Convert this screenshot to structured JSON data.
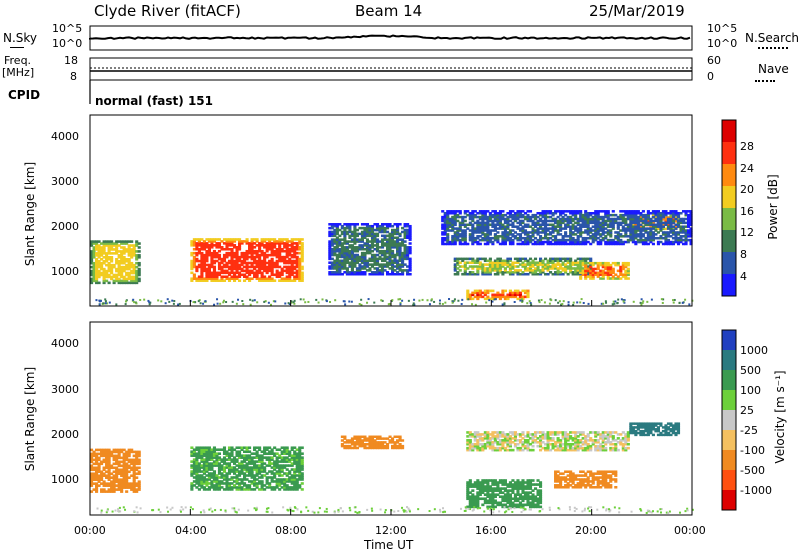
{
  "header": {
    "station": "Clyde River (fitACF)",
    "beam": "Beam 14",
    "date": "25/Mar/2019"
  },
  "noise_panel": {
    "left_label": "N.Sky",
    "right_label": "N.Search",
    "left_ticks": [
      "10^5",
      "10^0"
    ],
    "right_ticks": [
      "10^5",
      "10^0"
    ]
  },
  "freq_panel": {
    "left_label_line1": "Freq.",
    "left_label_line2": "[MHz]",
    "left_ticks": [
      "18",
      "8"
    ],
    "right_label": "Nave",
    "right_ticks": [
      "60",
      "0"
    ]
  },
  "cpid_panel": {
    "label": "CPID",
    "mode_text": "normal (fast) 151"
  },
  "power_panel": {
    "ylabel": "Slant Range [km]",
    "yticks": [
      "1000",
      "2000",
      "3000",
      "4000"
    ],
    "colorbar_label": "Power [dB]",
    "colorbar_ticks": [
      "4",
      "8",
      "12",
      "16",
      "20",
      "24",
      "28"
    ],
    "colorbar_colors": [
      "#1a1aff",
      "#2a55aa",
      "#3c7a52",
      "#7abb45",
      "#f2cc20",
      "#ff8a10",
      "#ff3010",
      "#dd0000"
    ]
  },
  "velocity_panel": {
    "ylabel": "Slant Range [km]",
    "yticks": [
      "1000",
      "2000",
      "3000",
      "4000"
    ],
    "colorbar_label": "Velocity [m s⁻¹]",
    "colorbar_ticks": [
      "1000",
      "500",
      "100",
      "25",
      "-25",
      "-100",
      "-500",
      "-1000"
    ],
    "colorbar_colors": [
      "#2040c0",
      "#2a7a80",
      "#3a9a50",
      "#6ccf3a",
      "#c8c8c8",
      "#f4c060",
      "#f08a20",
      "#ff5010",
      "#dd0000"
    ]
  },
  "xaxis": {
    "label": "Time UT",
    "ticks": [
      "00:00",
      "04:00",
      "08:00",
      "12:00",
      "16:00",
      "20:00",
      "00:00"
    ]
  },
  "chart_data": {
    "type": "heatmap",
    "title": "Clyde River (fitACF) Beam 14 25/Mar/2019",
    "xlabel": "Time UT",
    "ylabel": "Slant Range [km]",
    "xlim_hours": [
      0,
      24
    ],
    "ylim_km": [
      180,
      4600
    ],
    "power_regions": [
      {
        "t0": 0.0,
        "t1": 2.0,
        "r0": 700,
        "r1": 1700,
        "db": 18
      },
      {
        "t0": 4.0,
        "t1": 8.5,
        "r0": 750,
        "r1": 1750,
        "db": 26
      },
      {
        "t0": 9.5,
        "t1": 12.8,
        "r0": 900,
        "r1": 2100,
        "db": 9
      },
      {
        "t0": 15.0,
        "t1": 17.5,
        "r0": 330,
        "r1": 560,
        "db": 27
      },
      {
        "t0": 14.5,
        "t1": 20.0,
        "r0": 900,
        "r1": 1300,
        "db": 16
      },
      {
        "t0": 19.5,
        "t1": 21.5,
        "r0": 800,
        "r1": 1200,
        "db": 24
      },
      {
        "t0": 21.5,
        "t1": 23.5,
        "r0": 1950,
        "r1": 2300,
        "db": 24
      },
      {
        "t0": 14.0,
        "t1": 24.0,
        "r0": 1600,
        "r1": 2400,
        "db": 7
      }
    ],
    "velocity_regions": [
      {
        "t0": 0.0,
        "t1": 2.0,
        "r0": 700,
        "r1": 1700,
        "v": -300
      },
      {
        "t0": 4.0,
        "t1": 8.5,
        "r0": 750,
        "r1": 1750,
        "v": 150
      },
      {
        "t0": 10.0,
        "t1": 12.5,
        "r0": 1700,
        "r1": 2000,
        "v": -200
      },
      {
        "t0": 15.0,
        "t1": 18.0,
        "r0": 350,
        "r1": 1000,
        "v": 200
      },
      {
        "t0": 18.5,
        "t1": 21.0,
        "r0": 800,
        "r1": 1200,
        "v": -400
      },
      {
        "t0": 15.0,
        "t1": 21.5,
        "r0": 1650,
        "r1": 2100,
        "v": 0
      },
      {
        "t0": 21.5,
        "t1": 23.5,
        "r0": 2000,
        "r1": 2300,
        "v": 800
      }
    ]
  }
}
